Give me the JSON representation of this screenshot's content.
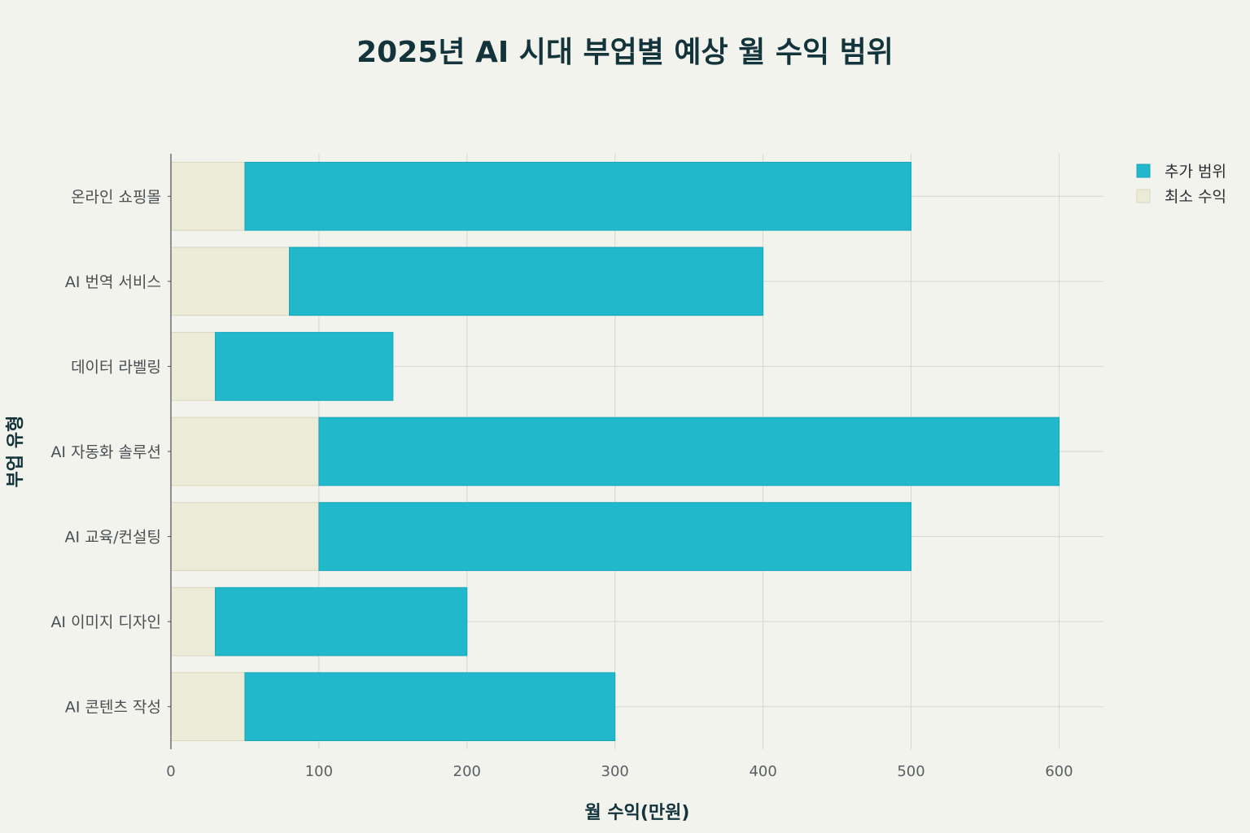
{
  "chart_data": {
    "type": "bar",
    "orientation": "horizontal",
    "stacked": true,
    "title": "2025년 AI 시대 부업별 예상 월 수익 범위",
    "xlabel": "월 수익(만원)",
    "ylabel": "부업 유형",
    "xlim": [
      0,
      630
    ],
    "xticks": [
      0,
      100,
      200,
      300,
      400,
      500,
      600
    ],
    "categories": [
      "온라인 쇼핑몰",
      "AI 번역 서비스",
      "데이터 라벨링",
      "AI 자동화 솔루션",
      "AI 교육/컨설팅",
      "AI 이미지 디자인",
      "AI 콘텐츠 작성"
    ],
    "series": [
      {
        "name": "최소 수익",
        "color": "#ecebd7",
        "values": [
          50,
          80,
          30,
          100,
          100,
          30,
          50
        ]
      },
      {
        "name": "추가 범위",
        "color": "#21b8cc",
        "values": [
          450,
          320,
          120,
          500,
          400,
          170,
          250
        ]
      }
    ],
    "legend_order": [
      "추가 범위",
      "최소 수익"
    ],
    "legend_position": "top-right",
    "grid": true
  }
}
